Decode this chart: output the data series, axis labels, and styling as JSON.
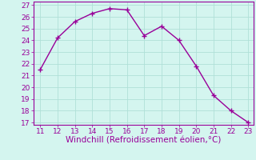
{
  "x": [
    11,
    12,
    13,
    14,
    15,
    16,
    17,
    18,
    19,
    20,
    21,
    22,
    23
  ],
  "y": [
    21.5,
    24.2,
    25.6,
    26.3,
    26.7,
    26.6,
    24.4,
    25.2,
    24.0,
    21.8,
    19.3,
    18.0,
    17.0
  ],
  "line_color": "#990099",
  "marker": "+",
  "marker_size": 5,
  "bg_color": "#d4f5ef",
  "grid_color": "#b0e0d8",
  "xlabel": "Windchill (Refroidissement éolien,°C)",
  "xlabel_color": "#990099",
  "tick_color": "#990099",
  "spine_color": "#990099",
  "ylim_min": 17,
  "ylim_max": 27,
  "xlim_min": 11,
  "xlim_max": 23,
  "yticks": [
    17,
    18,
    19,
    20,
    21,
    22,
    23,
    24,
    25,
    26,
    27
  ],
  "xticks": [
    11,
    12,
    13,
    14,
    15,
    16,
    17,
    18,
    19,
    20,
    21,
    22,
    23
  ],
  "tick_fontsize": 6.5,
  "xlabel_fontsize": 7.5,
  "linewidth": 1.0,
  "marker_linewidth": 1.0
}
